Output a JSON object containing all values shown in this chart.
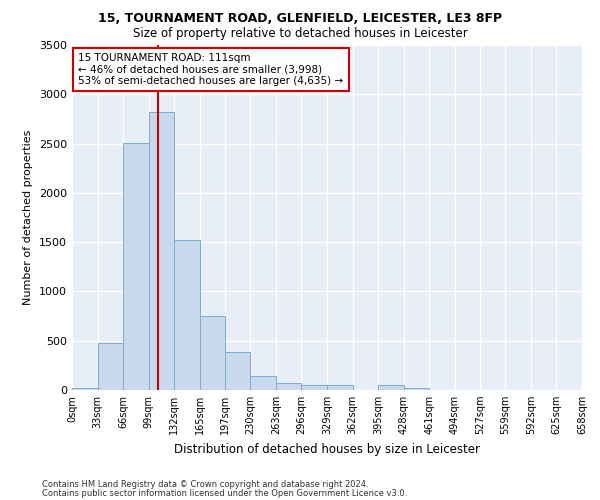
{
  "title1": "15, TOURNAMENT ROAD, GLENFIELD, LEICESTER, LE3 8FP",
  "title2": "Size of property relative to detached houses in Leicester",
  "xlabel": "Distribution of detached houses by size in Leicester",
  "ylabel": "Number of detached properties",
  "bar_color": "#c8d9ee",
  "bar_edge_color": "#7aadd4",
  "background_color": "#e8eef8",
  "grid_color": "#ffffff",
  "vline_color": "#cc0000",
  "vline_x": 111,
  "annotation_line1": "15 TOURNAMENT ROAD: 111sqm",
  "annotation_line2": "← 46% of detached houses are smaller (3,998)",
  "annotation_line3": "53% of semi-detached houses are larger (4,635) →",
  "annotation_box_color": "#ffffff",
  "annotation_border_color": "#cc0000",
  "bins": [
    0,
    33,
    66,
    99,
    132,
    165,
    197,
    230,
    263,
    296,
    329,
    362,
    395,
    428,
    461,
    494,
    527,
    559,
    592,
    625,
    658
  ],
  "bin_labels": [
    "0sqm",
    "33sqm",
    "66sqm",
    "99sqm",
    "132sqm",
    "165sqm",
    "197sqm",
    "230sqm",
    "263sqm",
    "296sqm",
    "329sqm",
    "362sqm",
    "395sqm",
    "428sqm",
    "461sqm",
    "494sqm",
    "527sqm",
    "559sqm",
    "592sqm",
    "625sqm",
    "658sqm"
  ],
  "bar_heights": [
    20,
    480,
    2510,
    2820,
    1520,
    755,
    385,
    140,
    75,
    50,
    50,
    0,
    50,
    25,
    0,
    0,
    0,
    0,
    0,
    0
  ],
  "ylim": [
    0,
    3500
  ],
  "yticks": [
    0,
    500,
    1000,
    1500,
    2000,
    2500,
    3000,
    3500
  ],
  "footnote1": "Contains HM Land Registry data © Crown copyright and database right 2024.",
  "footnote2": "Contains public sector information licensed under the Open Government Licence v3.0."
}
